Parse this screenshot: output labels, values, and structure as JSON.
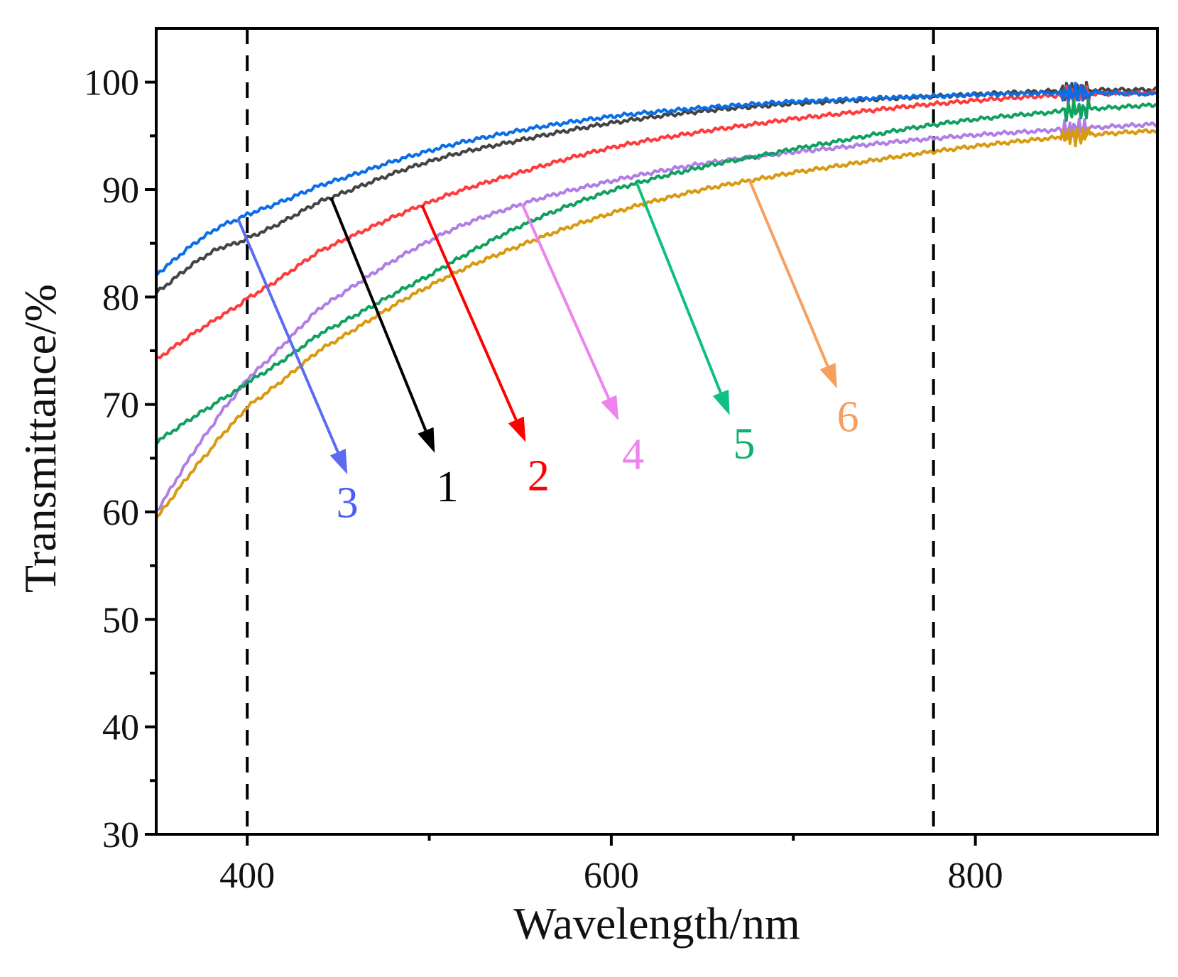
{
  "chart_data": {
    "type": "line",
    "xlabel": "Wavelength/nm",
    "ylabel": "Transmittance/%",
    "xlim": [
      350,
      900
    ],
    "ylim": [
      30,
      105
    ],
    "x_ticks": [
      400,
      600,
      800
    ],
    "x_minor_ticks": [
      500,
      700
    ],
    "y_ticks": [
      30,
      40,
      50,
      60,
      70,
      80,
      90,
      100
    ],
    "y_minor_ticks": [
      35,
      45,
      55,
      65,
      75,
      85,
      95
    ],
    "reference_lines_x": [
      400,
      777
    ],
    "grid": false,
    "legend": "none",
    "series": [
      {
        "label": "1",
        "color": "#444444",
        "arrow_color": "#000000",
        "label_color": "#000000",
        "x": [
          350,
          380,
          400,
          440,
          500,
          550,
          600,
          650,
          700,
          780,
          850,
          900
        ],
        "y": [
          80.4,
          84.1,
          85.5,
          88.9,
          92.6,
          94.6,
          96.2,
          97.3,
          98.0,
          98.7,
          99.2,
          99.3
        ]
      },
      {
        "label": "2",
        "color": "#ff3b3b",
        "arrow_color": "#ff0000",
        "label_color": "#ff0000",
        "x": [
          350,
          380,
          400,
          440,
          500,
          550,
          600,
          650,
          700,
          780,
          850,
          900
        ],
        "y": [
          74.2,
          77.6,
          79.9,
          84.3,
          88.8,
          91.6,
          93.9,
          95.4,
          96.6,
          98.0,
          98.8,
          99.0
        ]
      },
      {
        "label": "3",
        "color": "#0a6ee8",
        "arrow_color": "#5a6cf0",
        "label_color": "#4c5cf5",
        "x": [
          350,
          380,
          400,
          440,
          500,
          550,
          600,
          650,
          700,
          780,
          850,
          900
        ],
        "y": [
          82.1,
          86.0,
          87.7,
          90.4,
          93.6,
          95.5,
          96.8,
          97.6,
          98.2,
          98.7,
          99.0,
          98.9
        ]
      },
      {
        "label": "4",
        "color": "#b07ee6",
        "arrow_color": "#ee82ee",
        "label_color": "#ee82ee",
        "x": [
          350,
          380,
          400,
          440,
          500,
          550,
          600,
          650,
          700,
          780,
          850,
          900
        ],
        "y": [
          60.0,
          67.8,
          72.4,
          79.0,
          85.2,
          88.6,
          90.8,
          92.4,
          93.5,
          94.8,
          95.6,
          96.1
        ]
      },
      {
        "label": "5",
        "color": "#10a060",
        "arrow_color": "#10c080",
        "label_color": "#10b070",
        "x": [
          350,
          380,
          400,
          440,
          500,
          550,
          600,
          650,
          700,
          780,
          850,
          900
        ],
        "y": [
          66.5,
          69.8,
          72.1,
          76.6,
          82.0,
          86.6,
          89.9,
          92.1,
          93.8,
          96.1,
          97.3,
          97.9
        ]
      },
      {
        "label": "6",
        "color": "#d89a10",
        "arrow_color": "#f5a060",
        "label_color": "#f5a060",
        "x": [
          350,
          380,
          400,
          440,
          500,
          550,
          600,
          650,
          700,
          780,
          850,
          900
        ],
        "y": [
          59.4,
          65.8,
          69.8,
          75.1,
          81.0,
          84.8,
          87.8,
          90.0,
          91.6,
          93.6,
          94.9,
          95.5
        ]
      }
    ]
  }
}
